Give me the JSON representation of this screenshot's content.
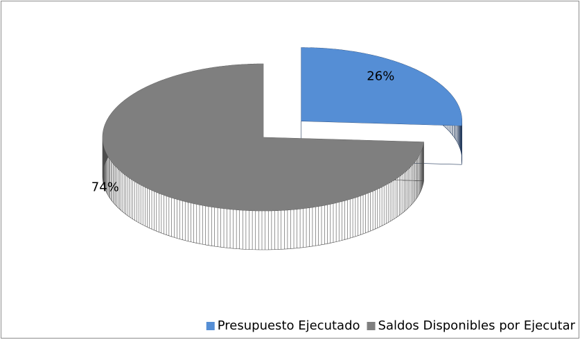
{
  "chart_data": {
    "type": "pie3d",
    "categories": [
      "Presupuesto Ejecutado",
      "Saldos Disponibles por Ejecutar"
    ],
    "values": [
      26,
      74
    ],
    "value_labels": [
      "26%",
      "74%"
    ],
    "colors": [
      "#558ed5",
      "#7f7f7f"
    ],
    "side_colors": [
      "#243a5c",
      "#4d4d4d"
    ],
    "exploded": [
      true,
      false
    ],
    "legend": "bottom"
  }
}
